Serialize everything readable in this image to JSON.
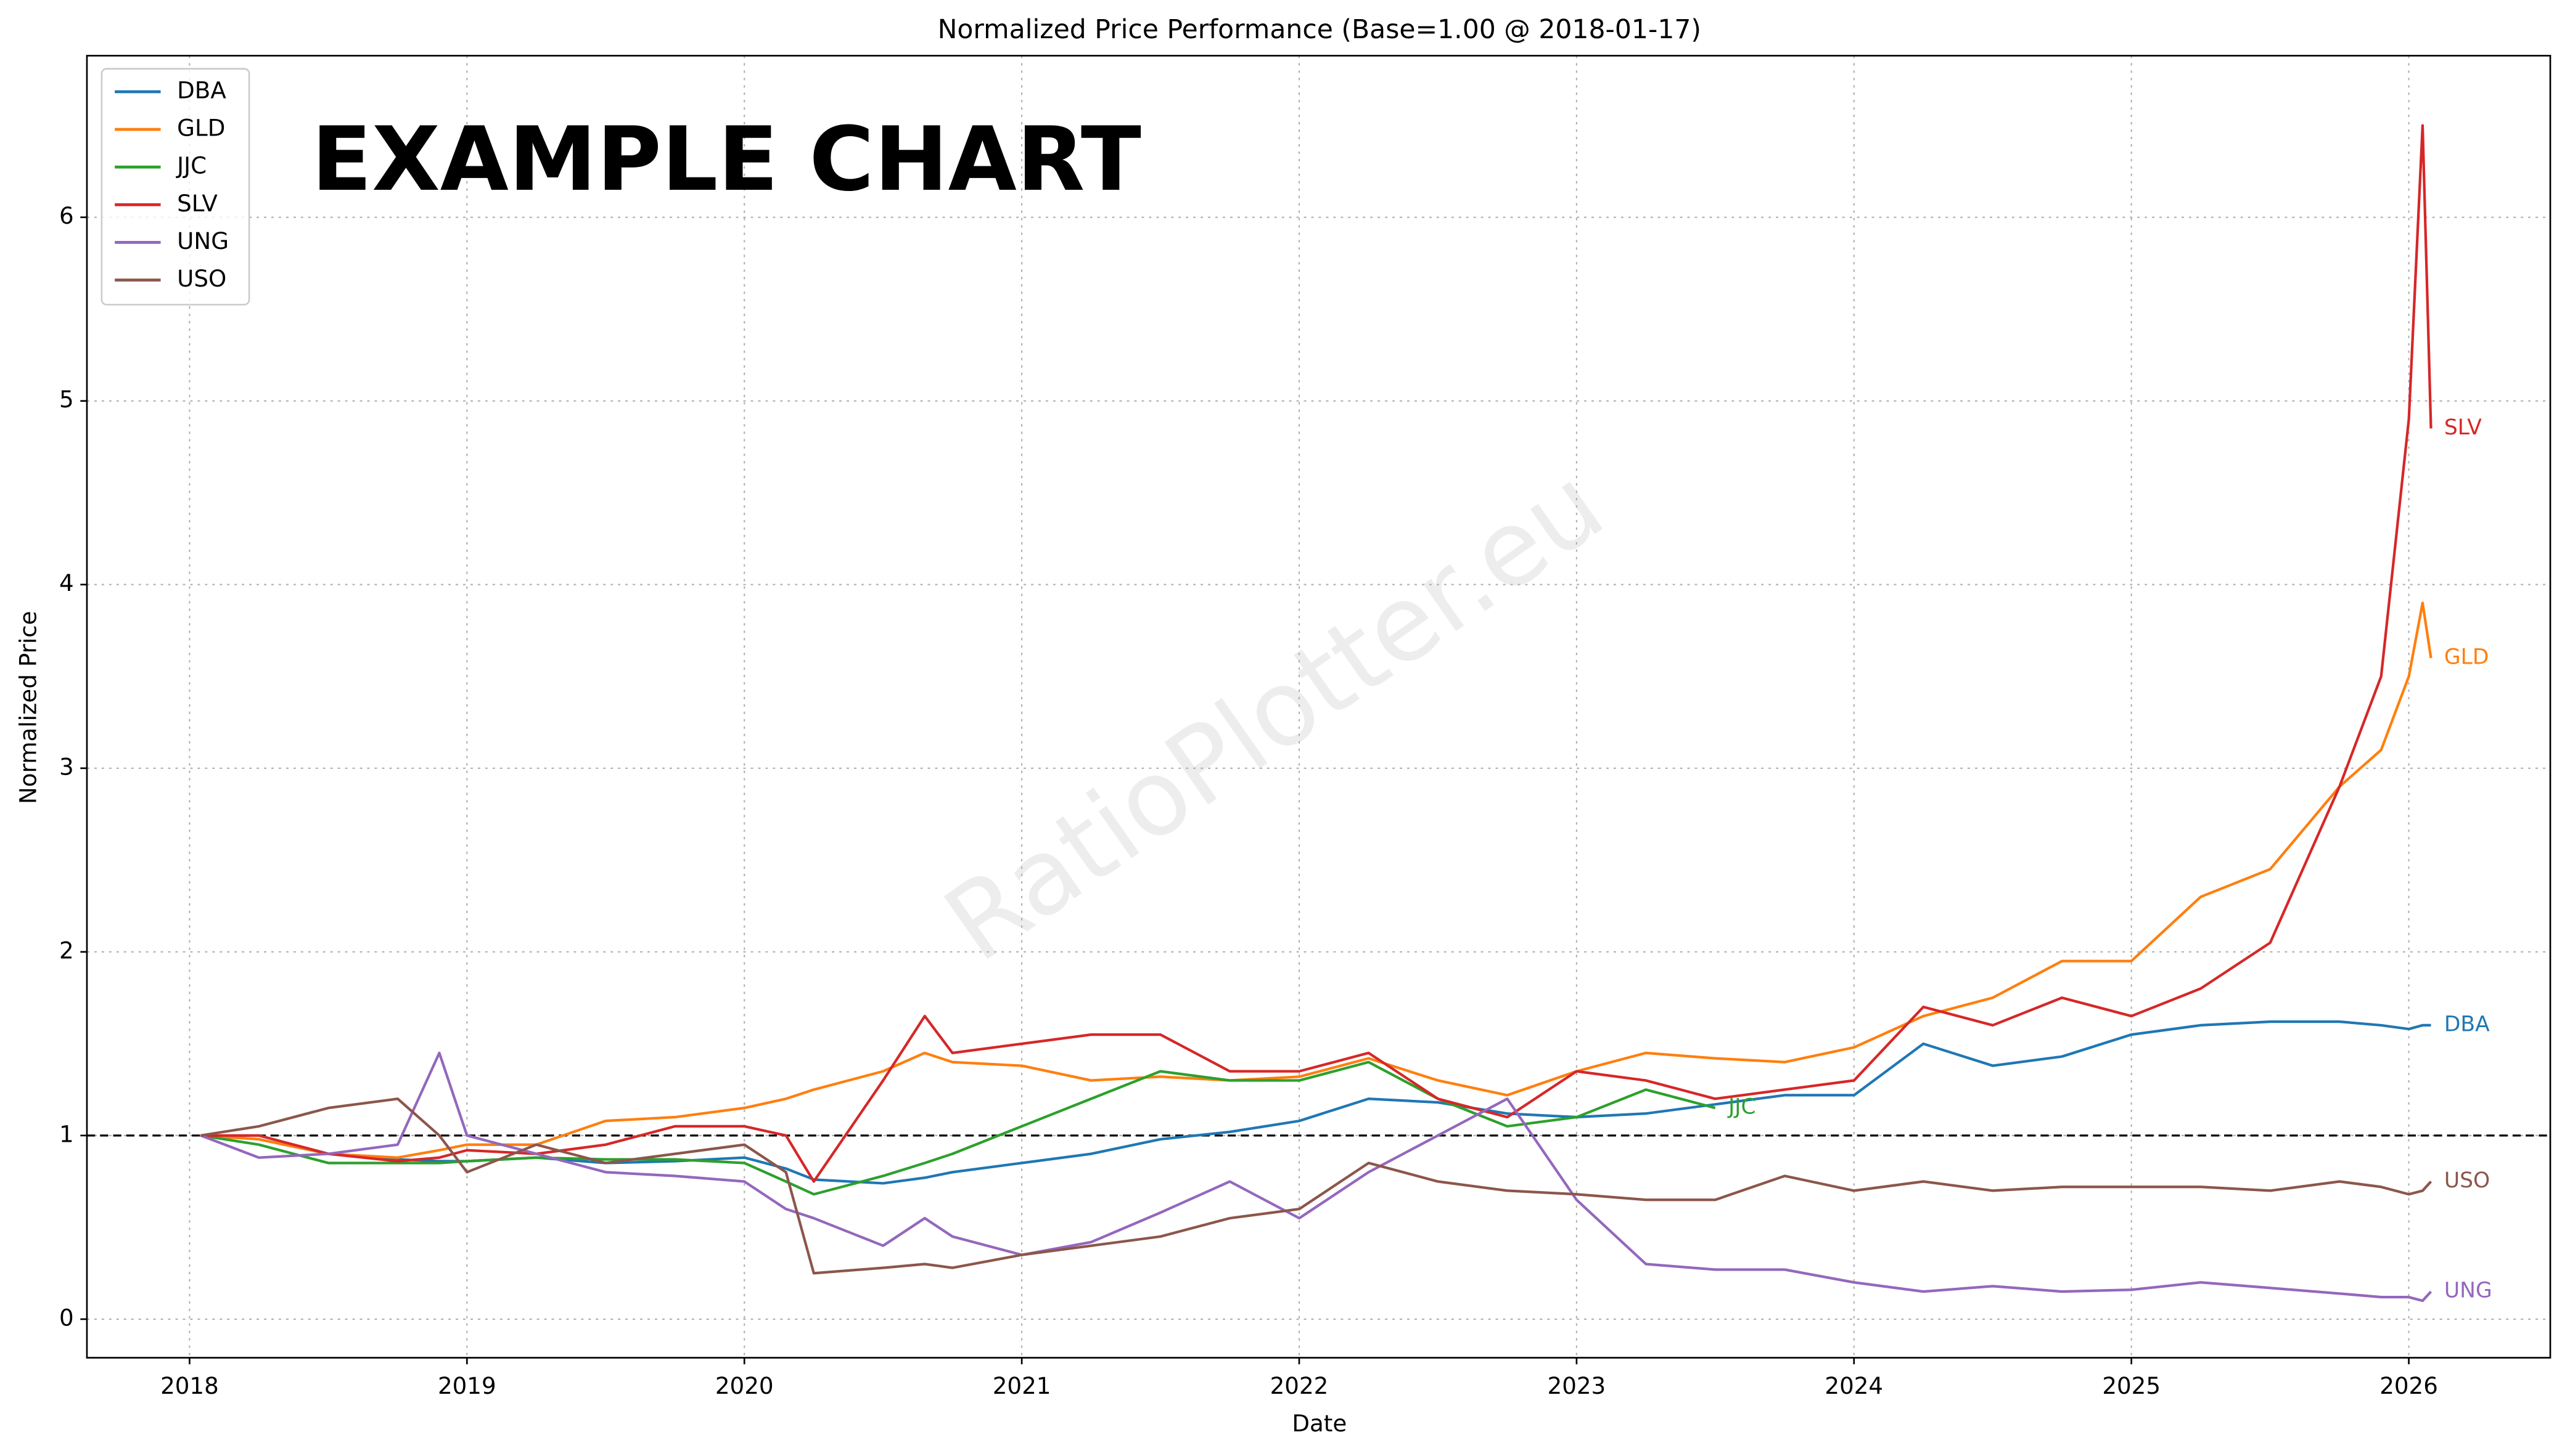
{
  "chart_data": {
    "type": "line",
    "title": "Normalized Price Performance (Base=1.00 @ 2018-01-17)",
    "xlabel": "Date",
    "ylabel": "Normalized Price",
    "annotation": "EXAMPLE CHART",
    "watermark": "RatioPlotter.eu",
    "baseline": 1,
    "grid": true,
    "legend": "upper left",
    "xlim": [
      2017.63,
      2026.51
    ],
    "ylim": [
      -0.21,
      6.88
    ],
    "xticks": [
      2018,
      2019,
      2020,
      2021,
      2022,
      2023,
      2024,
      2025,
      2026
    ],
    "yticks": [
      0,
      1,
      2,
      3,
      4,
      5,
      6
    ],
    "x": [
      2018.04,
      2018.25,
      2018.5,
      2018.75,
      2018.9,
      2019.0,
      2019.25,
      2019.5,
      2019.75,
      2020.0,
      2020.15,
      2020.25,
      2020.5,
      2020.65,
      2020.75,
      2021.0,
      2021.25,
      2021.5,
      2021.75,
      2022.0,
      2022.25,
      2022.5,
      2022.75,
      2023.0,
      2023.25,
      2023.5,
      2023.75,
      2024.0,
      2024.25,
      2024.5,
      2024.75,
      2025.0,
      2025.25,
      2025.5,
      2025.75,
      2025.9,
      2026.0,
      2026.05,
      2026.08
    ],
    "series": [
      {
        "name": "DBA",
        "color": "#1f77b4",
        "values": [
          1.0,
          0.98,
          0.9,
          0.87,
          0.86,
          0.86,
          0.88,
          0.85,
          0.86,
          0.88,
          0.82,
          0.76,
          0.74,
          0.77,
          0.8,
          0.85,
          0.9,
          0.98,
          1.02,
          1.08,
          1.2,
          1.18,
          1.12,
          1.1,
          1.12,
          1.17,
          1.22,
          1.22,
          1.5,
          1.38,
          1.43,
          1.55,
          1.6,
          1.62,
          1.62,
          1.6,
          1.58,
          1.6,
          1.6
        ]
      },
      {
        "name": "GLD",
        "color": "#ff7f0e",
        "values": [
          1.0,
          0.98,
          0.9,
          0.88,
          0.92,
          0.95,
          0.95,
          1.08,
          1.1,
          1.15,
          1.2,
          1.25,
          1.35,
          1.45,
          1.4,
          1.38,
          1.3,
          1.32,
          1.3,
          1.32,
          1.42,
          1.3,
          1.22,
          1.35,
          1.45,
          1.42,
          1.4,
          1.48,
          1.65,
          1.75,
          1.95,
          1.95,
          2.3,
          2.45,
          2.9,
          3.1,
          3.5,
          3.9,
          3.6
        ]
      },
      {
        "name": "JJC",
        "color": "#2ca02c",
        "values": [
          1.0,
          0.95,
          0.85,
          0.85,
          0.85,
          0.86,
          0.88,
          0.87,
          0.87,
          0.85,
          0.75,
          0.68,
          0.78,
          0.85,
          0.9,
          1.05,
          1.2,
          1.35,
          1.3,
          1.3,
          1.4,
          1.2,
          1.05,
          1.1,
          1.25,
          1.15,
          null,
          null,
          null,
          null,
          null,
          null,
          null,
          null,
          null,
          null,
          null,
          null,
          null
        ]
      },
      {
        "name": "SLV",
        "color": "#d62728",
        "values": [
          1.0,
          1.0,
          0.9,
          0.86,
          0.88,
          0.92,
          0.9,
          0.95,
          1.05,
          1.05,
          1.0,
          0.75,
          1.3,
          1.65,
          1.45,
          1.5,
          1.55,
          1.55,
          1.35,
          1.35,
          1.45,
          1.2,
          1.1,
          1.35,
          1.3,
          1.2,
          1.25,
          1.3,
          1.7,
          1.6,
          1.75,
          1.65,
          1.8,
          2.05,
          2.9,
          3.5,
          4.9,
          6.5,
          4.85
        ]
      },
      {
        "name": "UNG",
        "color": "#9467bd",
        "values": [
          1.0,
          0.88,
          0.9,
          0.95,
          1.45,
          1.0,
          0.9,
          0.8,
          0.78,
          0.75,
          0.6,
          0.55,
          0.4,
          0.55,
          0.45,
          0.35,
          0.42,
          0.58,
          0.75,
          0.55,
          0.8,
          1.0,
          1.2,
          0.65,
          0.3,
          0.27,
          0.27,
          0.2,
          0.15,
          0.18,
          0.15,
          0.16,
          0.2,
          0.17,
          0.14,
          0.12,
          0.12,
          0.1,
          0.15
        ]
      },
      {
        "name": "USO",
        "color": "#8c564b",
        "values": [
          1.0,
          1.05,
          1.15,
          1.2,
          1.0,
          0.8,
          0.95,
          0.85,
          0.9,
          0.95,
          0.8,
          0.25,
          0.28,
          0.3,
          0.28,
          0.35,
          0.4,
          0.45,
          0.55,
          0.6,
          0.85,
          0.75,
          0.7,
          0.68,
          0.65,
          0.65,
          0.78,
          0.7,
          0.75,
          0.7,
          0.72,
          0.72,
          0.72,
          0.7,
          0.75,
          0.72,
          0.68,
          0.7,
          0.75
        ]
      }
    ]
  }
}
